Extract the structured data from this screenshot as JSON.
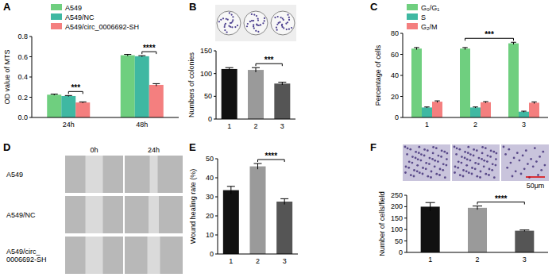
{
  "chart_data": [
    {
      "type": "bar",
      "title": "A",
      "ylabel": "OD value of MTS",
      "categories": [
        "24h",
        "48h"
      ],
      "series": [
        {
          "name": "A549",
          "color": "#6fcf7f",
          "values": [
            0.225,
            0.615
          ],
          "errors": [
            0.006,
            0.008
          ]
        },
        {
          "name": "A549/NC",
          "color": "#3fb8a2",
          "values": [
            0.212,
            0.605
          ],
          "errors": [
            0.005,
            0.006
          ]
        },
        {
          "name": "A549/circ_0006692-SH",
          "color": "#f47f7f",
          "values": [
            0.148,
            0.322
          ],
          "errors": [
            0.006,
            0.012
          ]
        }
      ],
      "ylim": [
        0,
        0.8
      ],
      "yticks": [
        {
          "value": 0,
          "label": "0.0"
        },
        0.2,
        0.4,
        0.6,
        0.8
      ],
      "legend": "top",
      "annotations": [
        {
          "text": "***",
          "category": 0,
          "series": [
            1,
            2
          ]
        },
        {
          "text": "****",
          "category": 1,
          "series": [
            1,
            2
          ]
        }
      ]
    },
    {
      "type": "bar",
      "title": "B",
      "ylabel": "Numbers of colonies",
      "categories": [
        "1",
        "2",
        "3"
      ],
      "values": [
        110,
        108,
        78
      ],
      "errors": [
        3,
        5,
        3
      ],
      "colors": [
        "#111111",
        "#9a9a9a",
        "#555555"
      ],
      "ylim": [
        0,
        150
      ],
      "yticks": [
        0,
        50,
        100,
        150
      ],
      "annotations": [
        {
          "text": "***",
          "categories": [
            1,
            2
          ]
        }
      ]
    },
    {
      "type": "bar",
      "title": "C",
      "ylabel": "Percentage of cells",
      "categories": [
        "1",
        "2",
        "3"
      ],
      "series": [
        {
          "name": "G₀/G₁",
          "color": "#6fcf7f",
          "values": [
            65.5,
            65.5,
            70.5
          ],
          "errors": [
            1,
            1,
            1
          ]
        },
        {
          "name": "S",
          "color": "#3fb8a2",
          "values": [
            9.5,
            9.5,
            5.5
          ],
          "errors": [
            0.5,
            0.5,
            0.5
          ]
        },
        {
          "name": "G₂/M",
          "color": "#f47f7f",
          "values": [
            15,
            14.5,
            14
          ],
          "errors": [
            0.8,
            0.6,
            0.8
          ]
        }
      ],
      "ylim": [
        0,
        80
      ],
      "yticks": [
        0,
        20,
        40,
        60,
        80
      ],
      "legend": "top",
      "annotations": [
        {
          "text": "***",
          "series": 0,
          "categories": [
            1,
            2
          ]
        }
      ]
    },
    {
      "type": "image_grid",
      "title": "D",
      "columns": [
        "0h",
        "24h"
      ],
      "rows": [
        "A549",
        "A549/NC",
        "A549/circ_\n0006692-SH"
      ]
    },
    {
      "type": "bar",
      "title": "E",
      "ylabel": "Wound healing rate (%)",
      "categories": [
        "1",
        "2",
        "3"
      ],
      "values": [
        33.5,
        46,
        27.5
      ],
      "errors": [
        2,
        1.5,
        1.5
      ],
      "colors": [
        "#111111",
        "#9a9a9a",
        "#555555"
      ],
      "ylim": [
        0,
        50
      ],
      "yticks": [
        0,
        10,
        20,
        30,
        40,
        50
      ],
      "annotations": [
        {
          "text": "****",
          "categories": [
            1,
            2
          ]
        }
      ]
    },
    {
      "type": "bar",
      "title": "F",
      "ylabel": "Number of cells/field",
      "categories": [
        "1",
        "2",
        "3"
      ],
      "values": [
        200,
        195,
        95
      ],
      "errors": [
        18,
        8,
        3
      ],
      "colors": [
        "#111111",
        "#9a9a9a",
        "#555555"
      ],
      "ylim": [
        0,
        250
      ],
      "yticks": [
        0,
        50,
        100,
        150,
        200,
        250
      ],
      "annotations": [
        {
          "text": "****",
          "categories": [
            1,
            2
          ]
        },
        {
          "text": "50μm"
        }
      ]
    }
  ]
}
